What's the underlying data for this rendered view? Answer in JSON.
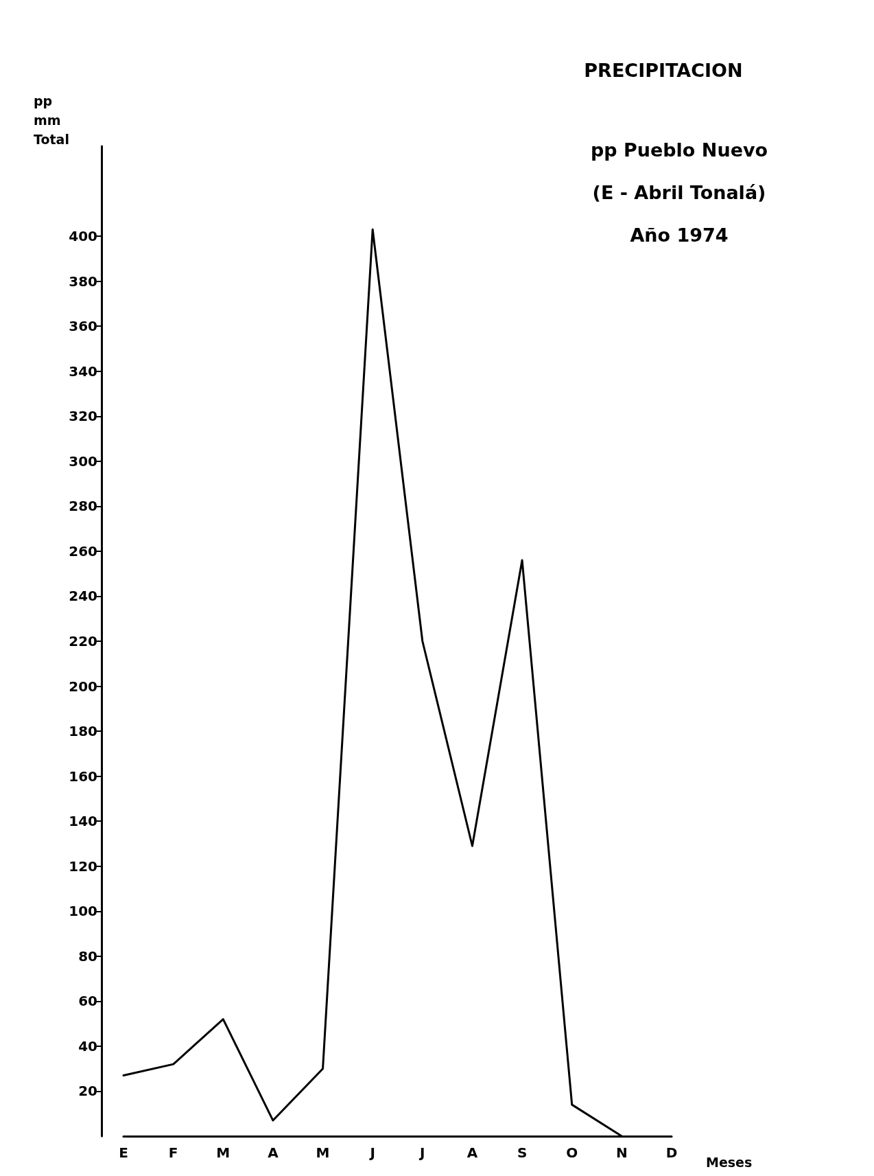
{
  "chart_data": {
    "type": "line",
    "title": "PRECIPITACION",
    "subtitle": "pp Pueblo Nuevo\n(E - Abril Tonalá)\nAño 1974",
    "ylabel": "pp\nmm\nTotal",
    "xlabel": "Meses",
    "categories": [
      "E",
      "F",
      "M",
      "A",
      "M",
      "J",
      "J",
      "A",
      "S",
      "O",
      "N",
      "D"
    ],
    "series": [
      {
        "color": "#000000",
        "values": [
          27,
          32,
          52,
          7,
          30,
          403,
          220,
          129,
          256,
          14,
          0,
          null
        ]
      }
    ],
    "ylim": [
      0,
      440
    ],
    "yticks": [
      20,
      40,
      60,
      80,
      100,
      120,
      140,
      160,
      180,
      200,
      220,
      240,
      260,
      280,
      300,
      320,
      340,
      360,
      380,
      400
    ],
    "grid": false,
    "marker": "none",
    "line_style": "solid"
  }
}
